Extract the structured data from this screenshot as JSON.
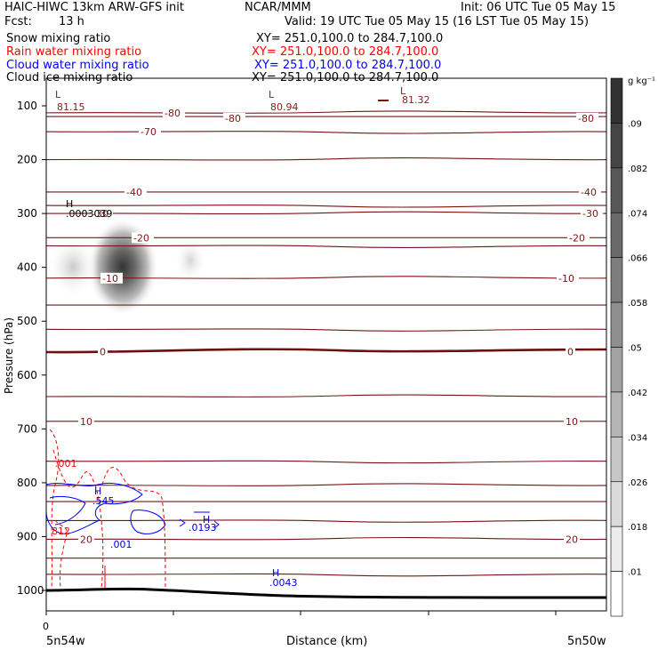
{
  "header": {
    "model": "HAIC-HIWC 13km ARW-GFS init",
    "org": "NCAR/MMM",
    "init": "Init: 06 UTC Tue 05 May 15",
    "fcst_label": "Fcst:",
    "fcst_value": "13 h",
    "valid": "Valid: 19 UTC Tue 05 May 15 (16 LST Tue 05 May 15)"
  },
  "fields": [
    {
      "name": "Snow mixing ratio",
      "xy": "XY= 251.0,100.0 to 284.7,100.0",
      "color": "#000000"
    },
    {
      "name": "Rain water mixing ratio",
      "xy": "XY= 251.0,100.0 to 284.7,100.0",
      "color": "#ff0000"
    },
    {
      "name": "Cloud water mixing ratio",
      "xy": "XY= 251.0,100.0 to 284.7,100.0",
      "color": "#0000ff"
    },
    {
      "name": "Cloud ice mixing ratio",
      "xy": "XY= 251.0,100.0 to 284.7,100.0",
      "color": "#000000"
    }
  ],
  "chart_data": {
    "type": "cross-section contour",
    "xlabel": "Distance (km)",
    "ylabel": "Pressure (hPa)",
    "x_tick_label": "0",
    "x_left_label": "5n54w",
    "x_right_label": "5n50w",
    "ylim": [
      1020,
      70
    ],
    "yticks": [
      100,
      200,
      300,
      400,
      500,
      600,
      700,
      800,
      900,
      1000
    ],
    "colorbar": {
      "units": "g kg⁻¹",
      "labels": [
        ".09",
        ".082",
        ".074",
        ".066",
        ".058",
        ".05",
        ".042",
        ".034",
        ".026",
        ".018",
        ".01"
      ]
    },
    "temperature_contours": [
      {
        "label": "-80",
        "p": 113
      },
      {
        "label": "-70",
        "p": 148
      },
      {
        "label": "-40",
        "p": 260
      },
      {
        "label": "-30",
        "p": 300
      },
      {
        "label": "-20",
        "p": 345
      },
      {
        "label": "-10",
        "p": 420
      },
      {
        "label": "0",
        "p": 557
      },
      {
        "label": "10",
        "p": 686
      },
      {
        "label": "20",
        "p": 905
      }
    ],
    "extrema": [
      {
        "text": "L",
        "value": "81.15",
        "color": "#8b1a1a"
      },
      {
        "text": "L",
        "value": "80.94",
        "color": "#8b1a1a"
      },
      {
        "text": "L",
        "value": "81.32",
        "color": "#8b1a1a"
      },
      {
        "text": "H",
        "value": ".0003039",
        "color": "#000000"
      },
      {
        "text": "H",
        "value": ".545",
        "color": "#0000cc"
      },
      {
        "text": "H",
        "value": ".0193",
        "color": "#0000cc"
      },
      {
        "text": "H",
        "value": ".0043",
        "color": "#0000cc"
      }
    ],
    "contour_labels": [
      {
        "text": ".001",
        "color": "#ff0000"
      },
      {
        "text": "812",
        "color": "#ff0000"
      },
      {
        "text": ".001",
        "color": "#0000cc"
      }
    ]
  }
}
